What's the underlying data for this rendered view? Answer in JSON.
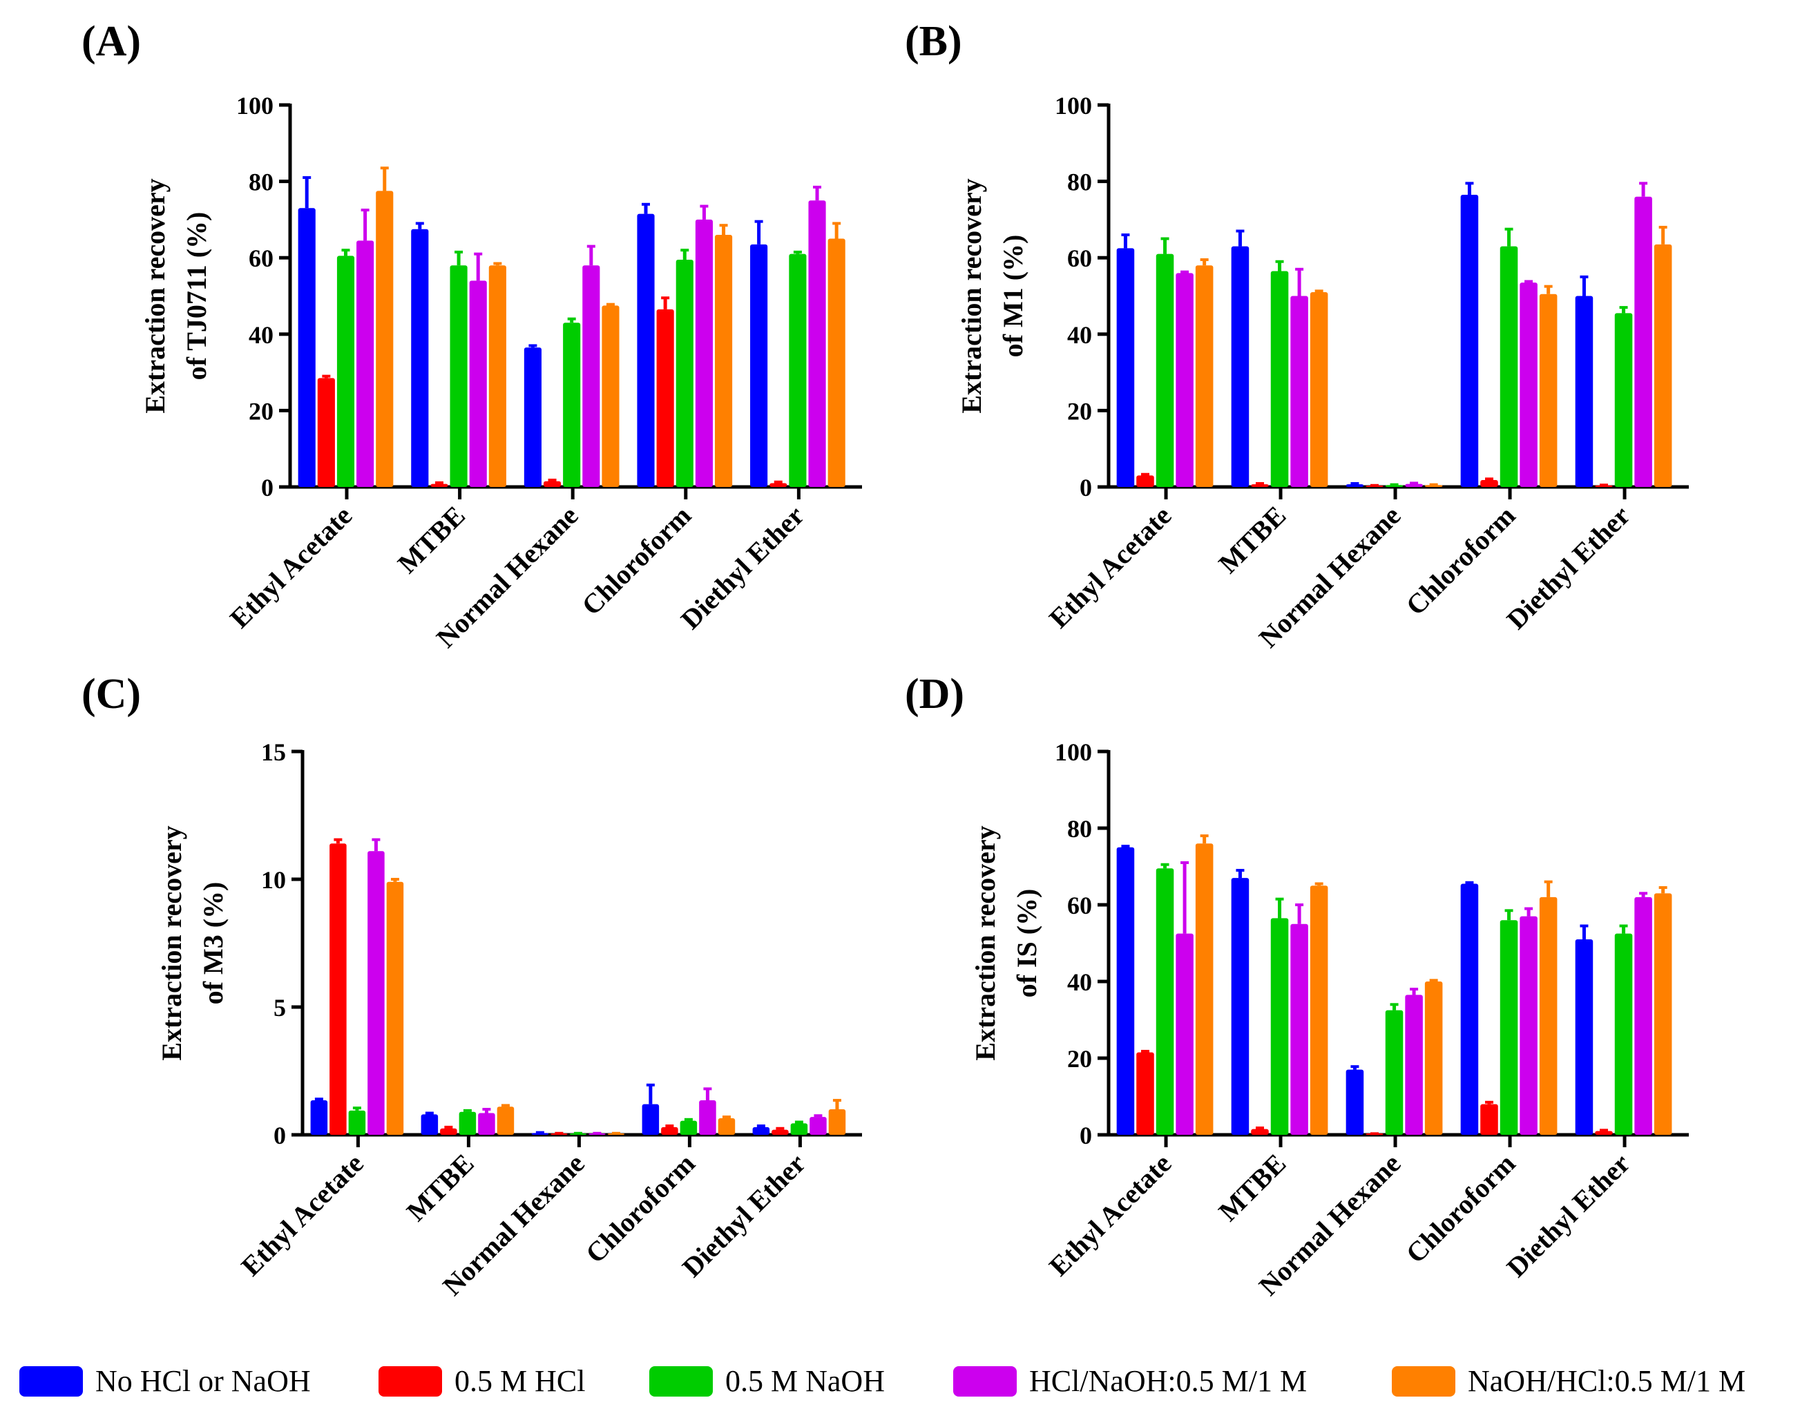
{
  "figure": {
    "legend": [
      {
        "name": "No HCl or NaOH",
        "color": "#0000ff"
      },
      {
        "name": "0.5 M HCl",
        "color": "#ff0000"
      },
      {
        "name": "0.5 M NaOH",
        "color": "#00cc00"
      },
      {
        "name": "HCl/NaOH:0.5 M/1 M",
        "color": "#cc00ee"
      },
      {
        "name": "NaOH/HCl:0.5 M/1 M",
        "color": "#ff8000"
      }
    ]
  },
  "chart_data": [
    {
      "type": "bar",
      "panel": "(A)",
      "ylabel_lines": [
        "Extraction recovery",
        "of TJ0711 (%)"
      ],
      "ylim": [
        0,
        100
      ],
      "yticks": [
        0,
        20,
        40,
        60,
        80,
        100
      ],
      "categories": [
        "Ethyl Acetate",
        "MTBE",
        "Normal Hexane",
        "Chloroform",
        "Diethyl Ether"
      ],
      "series": [
        {
          "name": "No HCl or NaOH",
          "values": [
            73,
            67.5,
            36.5,
            71.5,
            63.5
          ],
          "errors": [
            8,
            1.5,
            0.5,
            2.5,
            6
          ]
        },
        {
          "name": "0.5 M HCl",
          "values": [
            28.5,
            0.8,
            1.5,
            46.5,
            1
          ],
          "errors": [
            0.5,
            0.3,
            0.3,
            3,
            0.3
          ]
        },
        {
          "name": "0.5 M NaOH",
          "values": [
            60.5,
            58,
            43,
            59.5,
            61
          ],
          "errors": [
            1.5,
            3.5,
            1,
            2.5,
            0.5
          ]
        },
        {
          "name": "HCl/NaOH:0.5 M/1 M",
          "values": [
            64.5,
            54,
            58,
            70,
            75
          ],
          "errors": [
            8,
            7,
            5,
            3.5,
            3.5
          ]
        },
        {
          "name": "NaOH/HCl:0.5 M/1 M",
          "values": [
            77.5,
            58,
            47.5,
            66,
            65
          ],
          "errors": [
            6,
            0.5,
            0.3,
            2.5,
            4
          ]
        }
      ]
    },
    {
      "type": "bar",
      "panel": "(B)",
      "ylabel_lines": [
        "Extraction recovery",
        "of M1 (%)"
      ],
      "ylim": [
        0,
        100
      ],
      "yticks": [
        0,
        20,
        40,
        60,
        80,
        100
      ],
      "categories": [
        "Ethyl Acetate",
        "MTBE",
        "Normal Hexane",
        "Chloroform",
        "Diethyl Ether"
      ],
      "series": [
        {
          "name": "No HCl or NaOH",
          "values": [
            62.5,
            63,
            0.7,
            76.5,
            50
          ],
          "errors": [
            3.5,
            4,
            0.2,
            3,
            5
          ]
        },
        {
          "name": "0.5 M HCl",
          "values": [
            3,
            0.7,
            0.3,
            1.8,
            0.4
          ],
          "errors": [
            0.3,
            0.2,
            0.1,
            0.3,
            0.1
          ]
        },
        {
          "name": "0.5 M NaOH",
          "values": [
            61,
            56.5,
            0.5,
            63,
            45.5
          ],
          "errors": [
            4,
            2.5,
            0.1,
            4.5,
            1.5
          ]
        },
        {
          "name": "HCl/NaOH:0.5 M/1 M",
          "values": [
            56,
            50,
            0.8,
            53.5,
            76
          ],
          "errors": [
            0.3,
            7,
            0.2,
            0.3,
            3.5
          ]
        },
        {
          "name": "NaOH/HCl:0.5 M/1 M",
          "values": [
            58,
            51,
            0.5,
            50.5,
            63.5
          ],
          "errors": [
            1.5,
            0.3,
            0.1,
            2,
            4.5
          ]
        }
      ]
    },
    {
      "type": "bar",
      "panel": "(C)",
      "ylabel_lines": [
        "Extraction recovery",
        "of M3 (%)"
      ],
      "ylim": [
        0,
        15
      ],
      "yticks": [
        0,
        5,
        10,
        15
      ],
      "categories": [
        "Ethyl Acetate",
        "MTBE",
        "Normal Hexane",
        "Chloroform",
        "Diethyl Ether"
      ],
      "series": [
        {
          "name": "No HCl or NaOH",
          "values": [
            1.35,
            0.8,
            0.07,
            1.2,
            0.3
          ],
          "errors": [
            0.05,
            0.05,
            0.02,
            0.75,
            0.05
          ]
        },
        {
          "name": "0.5 M HCl",
          "values": [
            11.4,
            0.25,
            0.05,
            0.3,
            0.2
          ],
          "errors": [
            0.15,
            0.05,
            0.01,
            0.05,
            0.05
          ]
        },
        {
          "name": "0.5 M NaOH",
          "values": [
            0.95,
            0.9,
            0.05,
            0.55,
            0.45
          ],
          "errors": [
            0.1,
            0.05,
            0.01,
            0.05,
            0.05
          ]
        },
        {
          "name": "HCl/NaOH:0.5 M/1 M",
          "values": [
            11.1,
            0.85,
            0.05,
            1.35,
            0.7
          ],
          "errors": [
            0.45,
            0.15,
            0.01,
            0.45,
            0.05
          ]
        },
        {
          "name": "NaOH/HCl:0.5 M/1 M",
          "values": [
            9.9,
            1.1,
            0.05,
            0.65,
            1
          ],
          "errors": [
            0.1,
            0.05,
            0.01,
            0.05,
            0.35
          ]
        }
      ]
    },
    {
      "type": "bar",
      "panel": "(D)",
      "ylabel_lines": [
        "Extraction recovery",
        "of IS (%)"
      ],
      "ylim": [
        0,
        100
      ],
      "yticks": [
        0,
        20,
        40,
        60,
        80,
        100
      ],
      "categories": [
        "Ethyl Acetate",
        "MTBE",
        "Normal Hexane",
        "Chloroform",
        "Diethyl Ether"
      ],
      "series": [
        {
          "name": "No HCl or NaOH",
          "values": [
            75,
            67,
            17,
            65.5,
            51
          ],
          "errors": [
            0.3,
            2,
            0.8,
            0.3,
            3.5
          ]
        },
        {
          "name": "0.5 M HCl",
          "values": [
            21.5,
            1.5,
            0.2,
            8,
            1
          ],
          "errors": [
            0.3,
            0.3,
            0.1,
            0.5,
            0.2
          ]
        },
        {
          "name": "0.5 M NaOH",
          "values": [
            69.5,
            56.5,
            32.5,
            56,
            52.5
          ],
          "errors": [
            1,
            5,
            1.5,
            2.5,
            2
          ]
        },
        {
          "name": "HCl/NaOH:0.5 M/1 M",
          "values": [
            52.5,
            55,
            36.5,
            57,
            62
          ],
          "errors": [
            18.5,
            5,
            1.5,
            2,
            1
          ]
        },
        {
          "name": "NaOH/HCl:0.5 M/1 M",
          "values": [
            76,
            65,
            40,
            62,
            63
          ],
          "errors": [
            2,
            0.5,
            0.3,
            4,
            1.5
          ]
        }
      ]
    }
  ]
}
